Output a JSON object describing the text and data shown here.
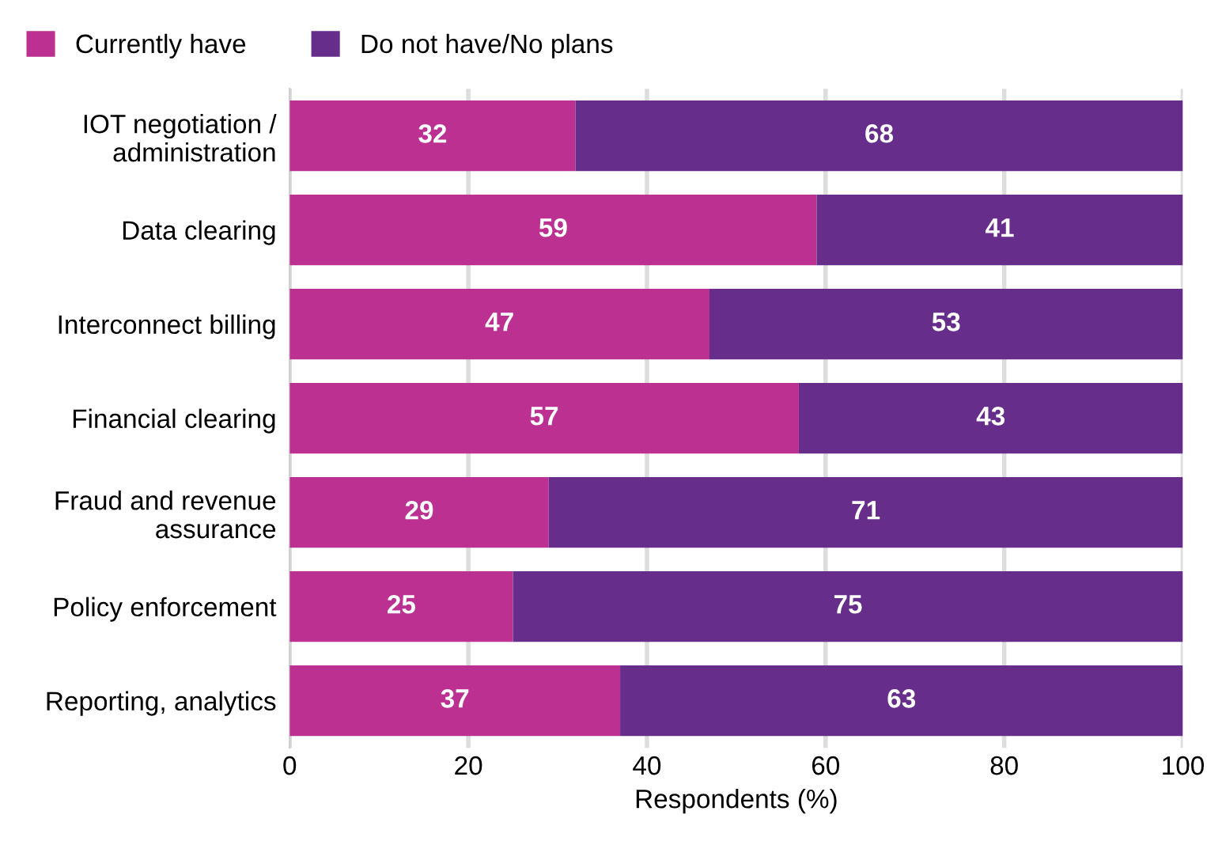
{
  "chart_data": {
    "type": "bar",
    "orientation": "horizontal",
    "stacked": true,
    "xlabel": "Respondents (%)",
    "categories": [
      "IOT negotiation /\nadministration",
      "Data clearing",
      "Interconnect billing",
      "Financial clearing",
      "Fraud and revenue\nassurance",
      "Policy enforcement",
      "Reporting, analytics"
    ],
    "series": [
      {
        "name": "Currently have",
        "color": "#bb3091",
        "values": [
          32,
          59,
          47,
          57,
          29,
          25,
          37
        ]
      },
      {
        "name": "Do not have/No plans",
        "color": "#662d8a",
        "values": [
          68,
          41,
          53,
          43,
          71,
          75,
          63
        ]
      }
    ],
    "xlim": [
      0,
      100
    ],
    "xticks": [
      0,
      20,
      40,
      60,
      80,
      100
    ],
    "grid": "x",
    "legend": "top left",
    "data_labels": true
  }
}
